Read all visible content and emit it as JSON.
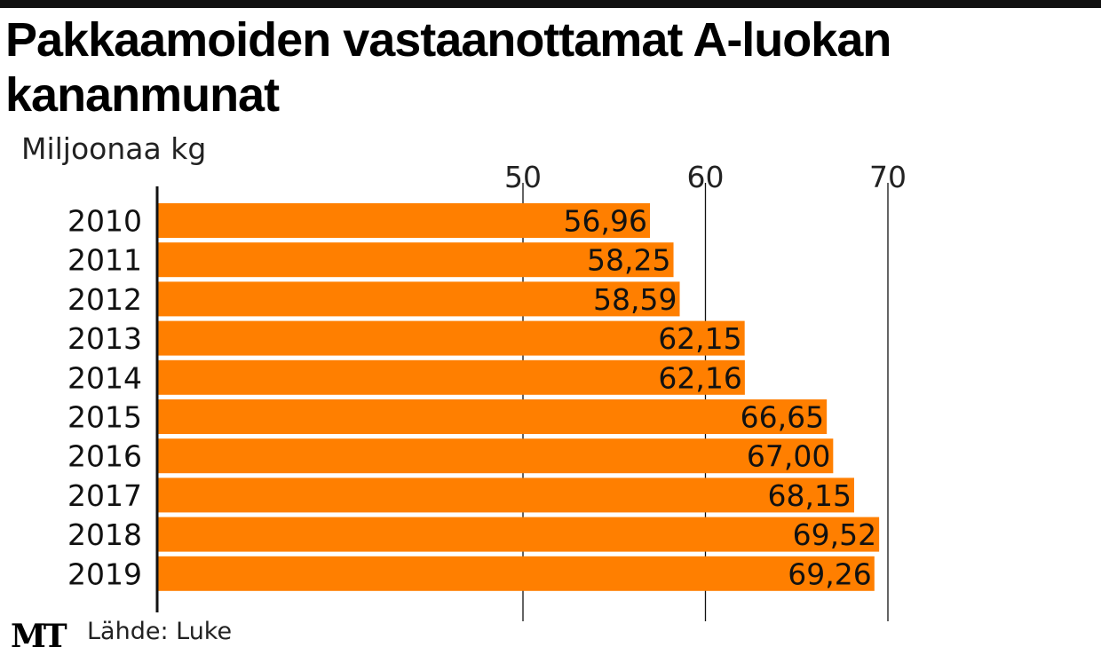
{
  "header": {
    "title": "Pakkaamoiden vastaanottamat A-luokan kananmunat",
    "unit": "Miljoonaa kg"
  },
  "footer": {
    "logo": "MT",
    "source": "Lähde: Luke"
  },
  "colors": {
    "bar": "#FF7F00",
    "text": "#111111",
    "axis": "#111111"
  },
  "chart_data": {
    "type": "bar",
    "orientation": "horizontal",
    "categories": [
      "2010",
      "2011",
      "2012",
      "2013",
      "2014",
      "2015",
      "2016",
      "2017",
      "2018",
      "2019"
    ],
    "values": [
      56.96,
      58.25,
      58.59,
      62.15,
      62.16,
      66.65,
      67.0,
      68.15,
      69.52,
      69.26
    ],
    "value_labels": [
      "56,96",
      "58,25",
      "58,59",
      "62,15",
      "62,16",
      "66,65",
      "67,00",
      "68,15",
      "69,52",
      "69,26"
    ],
    "x_ticks": [
      50,
      60,
      70
    ],
    "x_tick_labels": [
      "50",
      "60",
      "70"
    ],
    "xlim": [
      30,
      70
    ],
    "grid": true,
    "legend": "none"
  }
}
